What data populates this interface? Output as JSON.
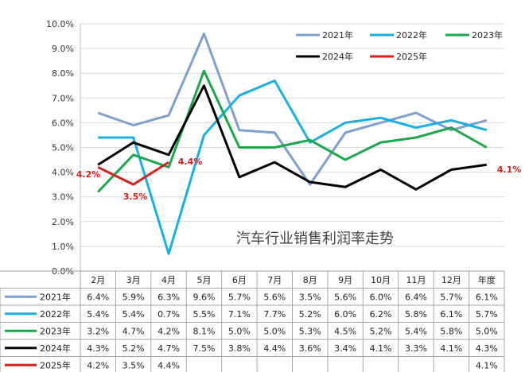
{
  "chart_data": {
    "type": "line",
    "title": "汽车行业销售利润率走势",
    "categories": [
      "2月",
      "3月",
      "4月",
      "5月",
      "6月",
      "7月",
      "8月",
      "9月",
      "10月",
      "11月",
      "12月",
      "年度"
    ],
    "y_ticks": [
      "0.0%",
      "1.0%",
      "2.0%",
      "3.0%",
      "4.0%",
      "5.0%",
      "6.0%",
      "7.0%",
      "8.0%",
      "9.0%",
      "10.0%"
    ],
    "ylim": [
      0,
      10
    ],
    "grid": true,
    "legend_position": "top-right",
    "series": [
      {
        "name": "2021年",
        "color": "#7f9fcf",
        "values": [
          6.4,
          5.9,
          6.3,
          9.6,
          5.7,
          5.6,
          3.5,
          5.6,
          6.0,
          6.4,
          5.7,
          6.1
        ],
        "labels": [
          "6.4%",
          "5.9%",
          "6.3%",
          "9.6%",
          "5.7%",
          "5.6%",
          "3.5%",
          "5.6%",
          "6.0%",
          "6.4%",
          "5.7%",
          "6.1%"
        ]
      },
      {
        "name": "2022年",
        "color": "#1ab0e6",
        "values": [
          5.4,
          5.4,
          0.7,
          5.5,
          7.1,
          7.7,
          5.2,
          6.0,
          6.2,
          5.8,
          6.1,
          5.7
        ],
        "labels": [
          "5.4%",
          "5.4%",
          "0.7%",
          "5.5%",
          "7.1%",
          "7.7%",
          "5.2%",
          "6.0%",
          "6.2%",
          "5.8%",
          "6.1%",
          "5.7%"
        ]
      },
      {
        "name": "2023年",
        "color": "#1aa84a",
        "values": [
          3.2,
          4.7,
          4.2,
          8.1,
          5.0,
          5.0,
          5.3,
          4.5,
          5.2,
          5.4,
          5.8,
          5.0
        ],
        "labels": [
          "3.2%",
          "4.7%",
          "4.2%",
          "8.1%",
          "5.0%",
          "5.0%",
          "5.3%",
          "4.5%",
          "5.2%",
          "5.4%",
          "5.8%",
          "5.0%"
        ]
      },
      {
        "name": "2024年",
        "color": "#000000",
        "values": [
          4.3,
          5.2,
          4.7,
          7.5,
          3.8,
          4.4,
          3.6,
          3.4,
          4.1,
          3.3,
          4.1,
          4.3
        ],
        "labels": [
          "4.3%",
          "5.2%",
          "4.7%",
          "7.5%",
          "3.8%",
          "4.4%",
          "3.6%",
          "3.4%",
          "4.1%",
          "3.3%",
          "4.1%",
          "4.3%"
        ]
      },
      {
        "name": "2025年",
        "color": "#d42020",
        "values": [
          4.2,
          3.5,
          4.4,
          null,
          null,
          null,
          null,
          null,
          null,
          null,
          null,
          4.1
        ],
        "labels": [
          "4.2%",
          "3.5%",
          "4.4%",
          "",
          "",
          "",
          "",
          "",
          "",
          "",
          "",
          "4.1%"
        ]
      }
    ],
    "annotations": [
      {
        "text": "4.2%",
        "color": "#d42020"
      },
      {
        "text": "3.5%",
        "color": "#d42020"
      },
      {
        "text": "4.4%",
        "color": "#d42020"
      },
      {
        "text": "4.1%",
        "color": "#d42020"
      }
    ]
  }
}
